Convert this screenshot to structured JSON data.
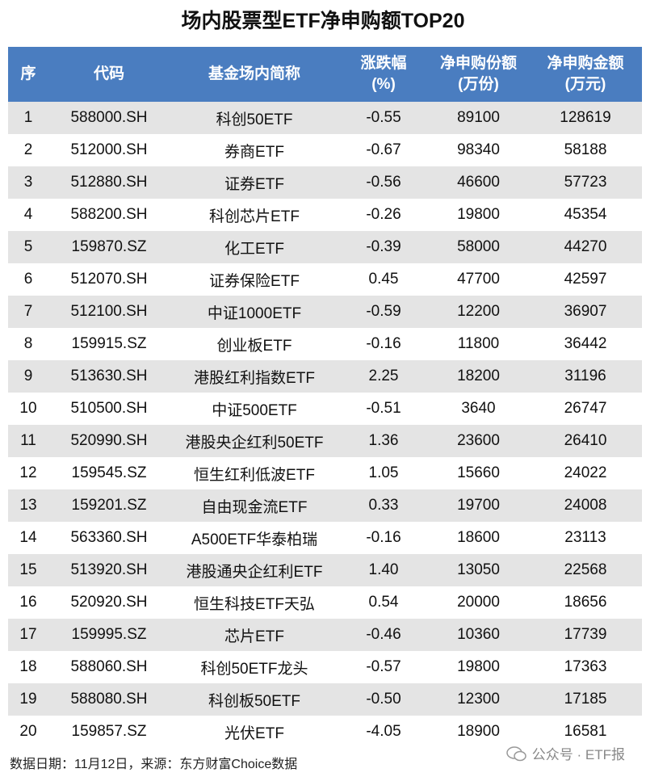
{
  "title": "场内股票型ETF净申购额TOP20",
  "table": {
    "header": [
      [
        "序"
      ],
      [
        "代码"
      ],
      [
        "基金场内简称"
      ],
      [
        "涨跌幅",
        "(%)"
      ],
      [
        "净申购份额",
        "(万份)"
      ],
      [
        "净申购金额",
        "(万元)"
      ]
    ],
    "rows": [
      [
        "1",
        "588000.SH",
        "科创50ETF",
        "-0.55",
        "89100",
        "128619"
      ],
      [
        "2",
        "512000.SH",
        "券商ETF",
        "-0.67",
        "98340",
        "58188"
      ],
      [
        "3",
        "512880.SH",
        "证券ETF",
        "-0.56",
        "46600",
        "57723"
      ],
      [
        "4",
        "588200.SH",
        "科创芯片ETF",
        "-0.26",
        "19800",
        "45354"
      ],
      [
        "5",
        "159870.SZ",
        "化工ETF",
        "-0.39",
        "58000",
        "44270"
      ],
      [
        "6",
        "512070.SH",
        "证券保险ETF",
        "0.45",
        "47700",
        "42597"
      ],
      [
        "7",
        "512100.SH",
        "中证1000ETF",
        "-0.59",
        "12200",
        "36907"
      ],
      [
        "8",
        "159915.SZ",
        "创业板ETF",
        "-0.16",
        "11800",
        "36442"
      ],
      [
        "9",
        "513630.SH",
        "港股红利指数ETF",
        "2.25",
        "18200",
        "31196"
      ],
      [
        "10",
        "510500.SH",
        "中证500ETF",
        "-0.51",
        "3640",
        "26747"
      ],
      [
        "11",
        "520990.SH",
        "港股央企红利50ETF",
        "1.36",
        "23600",
        "26410"
      ],
      [
        "12",
        "159545.SZ",
        "恒生红利低波ETF",
        "1.05",
        "15660",
        "24022"
      ],
      [
        "13",
        "159201.SZ",
        "自由现金流ETF",
        "0.33",
        "19700",
        "24008"
      ],
      [
        "14",
        "563360.SH",
        "A500ETF华泰柏瑞",
        "-0.16",
        "18600",
        "23113"
      ],
      [
        "15",
        "513920.SH",
        "港股通央企红利ETF",
        "1.40",
        "13050",
        "22568"
      ],
      [
        "16",
        "520920.SH",
        "恒生科技ETF天弘",
        "0.54",
        "20000",
        "18656"
      ],
      [
        "17",
        "159995.SZ",
        "芯片ETF",
        "-0.46",
        "10360",
        "17739"
      ],
      [
        "18",
        "588060.SH",
        "科创50ETF龙头",
        "-0.57",
        "19800",
        "17363"
      ],
      [
        "19",
        "588080.SH",
        "科创板50ETF",
        "-0.50",
        "12300",
        "17185"
      ],
      [
        "20",
        "159857.SZ",
        "光伏ETF",
        "-4.05",
        "18900",
        "16581"
      ]
    ]
  },
  "footer": "数据日期：11月12日，来源：东方财富Choice数据",
  "watermark": "公众号 · ETF报"
}
